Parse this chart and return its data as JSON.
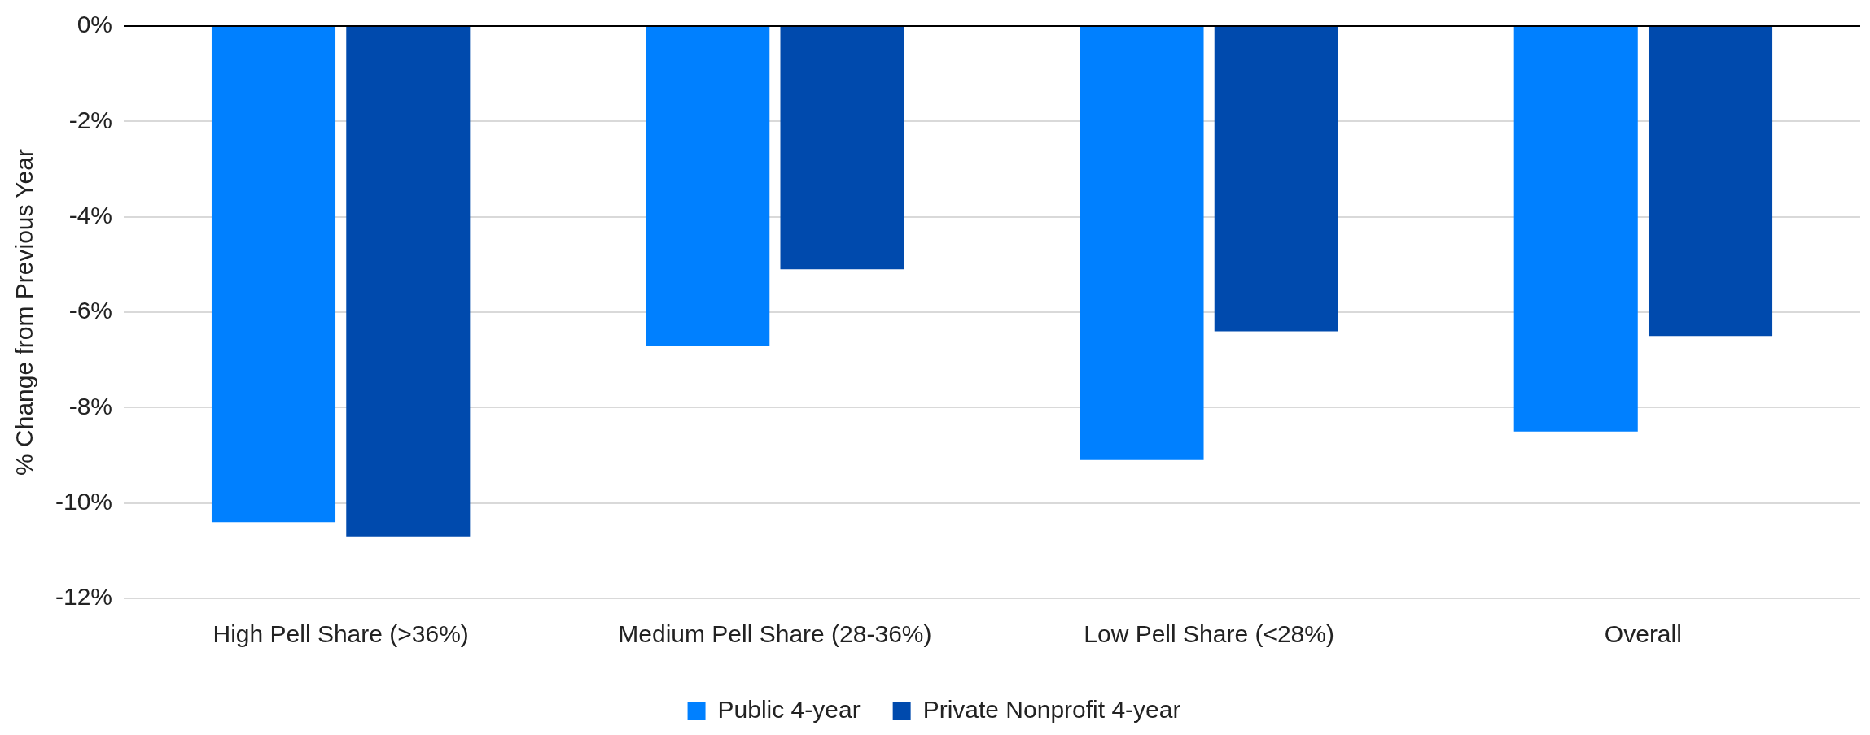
{
  "chart_data": {
    "type": "bar",
    "ylabel": "% Change from Previous Year",
    "categories": [
      "High Pell Share (>36%)",
      "Medium Pell Share (28-36%)",
      "Low Pell Share (<28%)",
      "Overall"
    ],
    "series": [
      {
        "name": "Public 4-year",
        "color": "#0080ff",
        "values": [
          -10.4,
          -6.7,
          -9.1,
          -8.5
        ]
      },
      {
        "name": "Private Nonprofit 4-year",
        "color": "#004aad",
        "values": [
          -10.7,
          -5.1,
          -6.4,
          -6.5
        ]
      }
    ],
    "ylim": [
      -12,
      0
    ],
    "yticks": [
      {
        "value": -12,
        "label": "-12%"
      },
      {
        "value": -10,
        "label": "-10%"
      },
      {
        "value": -8,
        "label": "-8%"
      },
      {
        "value": -6,
        "label": "-6%"
      },
      {
        "value": -4,
        "label": "-4%"
      },
      {
        "value": -2,
        "label": "-2%"
      },
      {
        "value": 0,
        "label": "0%"
      }
    ],
    "grid": "y",
    "legend": "bottom"
  }
}
